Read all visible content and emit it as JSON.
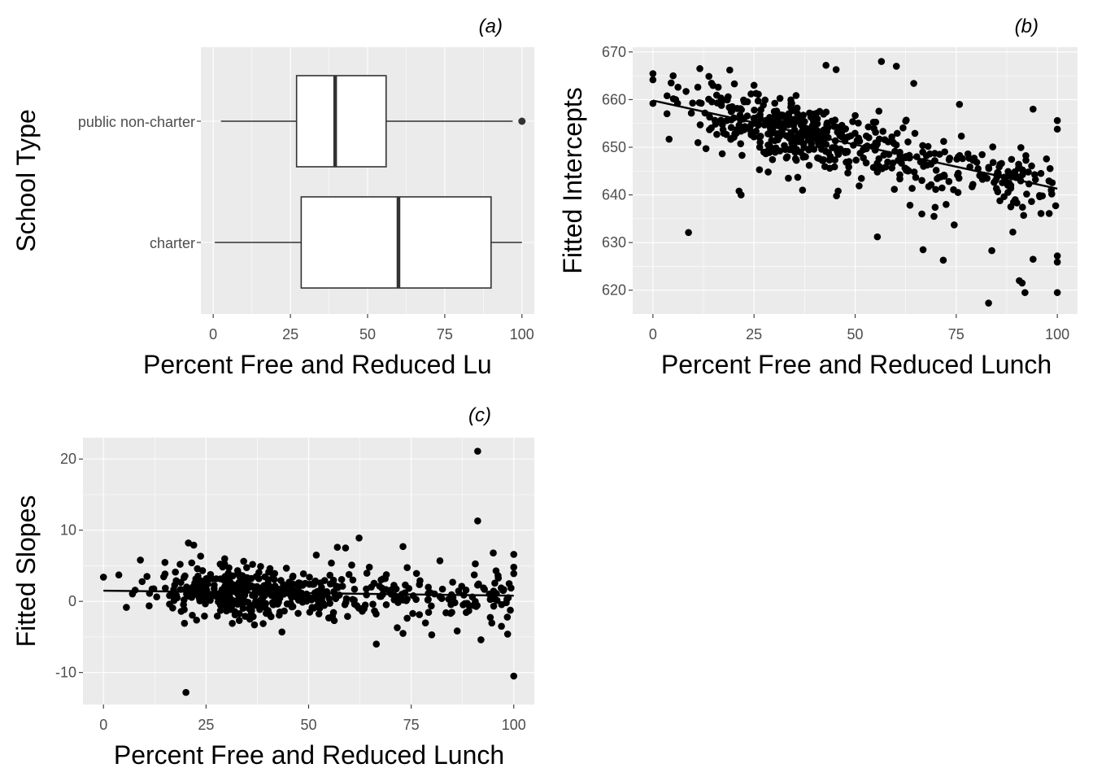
{
  "colors": {
    "panel_background": "#ebebeb",
    "grid_major": "#ffffff",
    "points": "#000000",
    "box_fill": "#ffffff",
    "box_line": "#333333",
    "tick_text": "#4d4d4d"
  },
  "chart_data": [
    {
      "type": "boxplot",
      "title": "(a)",
      "xlabel": "Percent Free and Reduced Lu",
      "ylabel": "School Type",
      "xlim": [
        -4,
        104
      ],
      "xticks": [
        "0",
        "25",
        "50",
        "75",
        "100"
      ],
      "xtick_values": [
        0,
        25,
        50,
        75,
        100
      ],
      "categories": [
        "public non-charter",
        "charter"
      ],
      "boxes": [
        {
          "category": "public non-charter",
          "whisker_low": 2.5,
          "q1": 27,
          "median": 39.5,
          "q3": 56,
          "whisker_high": 97,
          "outliers": [
            100
          ]
        },
        {
          "category": "charter",
          "whisker_low": 0.5,
          "q1": 28.5,
          "median": 60,
          "q3": 90,
          "whisker_high": 100,
          "outliers": []
        }
      ]
    },
    {
      "type": "scatter",
      "title": "(b)",
      "xlabel": "Percent Free and Reduced Lunch",
      "ylabel": "Fitted Intercepts",
      "xlim": [
        -5,
        105
      ],
      "ylim": [
        615,
        671
      ],
      "xticks": [
        "0",
        "25",
        "50",
        "75",
        "100"
      ],
      "xtick_values": [
        0,
        25,
        50,
        75,
        100
      ],
      "yticks": [
        "620",
        "630",
        "640",
        "650",
        "660",
        "670"
      ],
      "ytick_values": [
        620,
        630,
        640,
        650,
        660,
        670
      ],
      "fit_line": {
        "x": [
          0,
          100
        ],
        "y": [
          659.8,
          641.3
        ]
      },
      "seed": 7,
      "points": [
        [
          0,
          659.2
        ],
        [
          4.5,
          663.5
        ],
        [
          5,
          665
        ],
        [
          4,
          651.7
        ],
        [
          8.8,
          632.1
        ],
        [
          11.6,
          666.5
        ],
        [
          19,
          666.2
        ],
        [
          21.3,
          640.8
        ],
        [
          21.8,
          640
        ],
        [
          25,
          663
        ],
        [
          37,
          641
        ],
        [
          42.8,
          667.2
        ],
        [
          45.3,
          666.3
        ],
        [
          45.8,
          640.8
        ],
        [
          45.4,
          639.8
        ],
        [
          55.5,
          631.2
        ],
        [
          56.5,
          668
        ],
        [
          60.2,
          667
        ],
        [
          64.5,
          663.4
        ],
        [
          66.5,
          636
        ],
        [
          66.8,
          628.5
        ],
        [
          69.5,
          635.5
        ],
        [
          71.8,
          626.3
        ],
        [
          72.5,
          638
        ],
        [
          74.5,
          633.7
        ],
        [
          75.8,
          659
        ],
        [
          83,
          617.3
        ],
        [
          83.8,
          628.3
        ],
        [
          88.5,
          637.5
        ],
        [
          89,
          632.2
        ],
        [
          90.6,
          622
        ],
        [
          91.3,
          621.5
        ],
        [
          92,
          619.5
        ],
        [
          94,
          626.5
        ],
        [
          94,
          658
        ],
        [
          100,
          655.6
        ],
        [
          100,
          653.8
        ],
        [
          100,
          627.2
        ],
        [
          100,
          625.9
        ],
        [
          100,
          619.5
        ],
        [
          98.5,
          641
        ],
        [
          86.2,
          646.6
        ],
        [
          80.4,
          645.5
        ],
        [
          77.9,
          648.6
        ],
        [
          62.5,
          655.5
        ],
        [
          33.5,
          643.5
        ],
        [
          28.5,
          644.8
        ],
        [
          15.8,
          652.7
        ],
        [
          3.5,
          660.8
        ],
        [
          6.2,
          662.6
        ]
      ]
    },
    {
      "type": "scatter",
      "title": "(c)",
      "xlabel": "Percent Free and Reduced Lunch",
      "ylabel": "Fitted Slopes",
      "xlim": [
        -5,
        105
      ],
      "ylim": [
        -14.5,
        23
      ],
      "xticks": [
        "0",
        "25",
        "50",
        "75",
        "100"
      ],
      "xtick_values": [
        0,
        25,
        50,
        75,
        100
      ],
      "yticks": [
        "-10",
        "0",
        "10",
        "20"
      ],
      "ytick_values": [
        -10,
        0,
        10,
        20
      ],
      "fit_line": {
        "x": [
          0,
          100
        ],
        "y": [
          1.5,
          0.8
        ]
      },
      "seed": 19,
      "points": [
        [
          0,
          3.4
        ],
        [
          20.1,
          -12.8
        ],
        [
          91.2,
          21.1
        ],
        [
          91.2,
          11.3
        ],
        [
          100,
          -10.5
        ],
        [
          62.3,
          8.9
        ],
        [
          66.5,
          -6
        ],
        [
          57,
          7.6
        ],
        [
          59,
          7.5
        ],
        [
          73,
          7.7
        ],
        [
          20.7,
          8.2
        ],
        [
          22,
          7.9
        ],
        [
          9,
          5.8
        ],
        [
          100,
          6.6
        ],
        [
          100,
          4.8
        ],
        [
          100,
          3.9
        ],
        [
          95,
          6.8
        ],
        [
          82,
          5.7
        ],
        [
          92,
          -5.4
        ],
        [
          97,
          -3.5
        ],
        [
          98.5,
          -4.6
        ],
        [
          73,
          -4.5
        ],
        [
          71.6,
          -3.7
        ],
        [
          80,
          -4.7
        ],
        [
          55.8,
          -2.1
        ],
        [
          43.5,
          -4.3
        ],
        [
          36.8,
          -3.3
        ],
        [
          64.8,
          4.8
        ],
        [
          60.5,
          5.1
        ]
      ]
    }
  ]
}
